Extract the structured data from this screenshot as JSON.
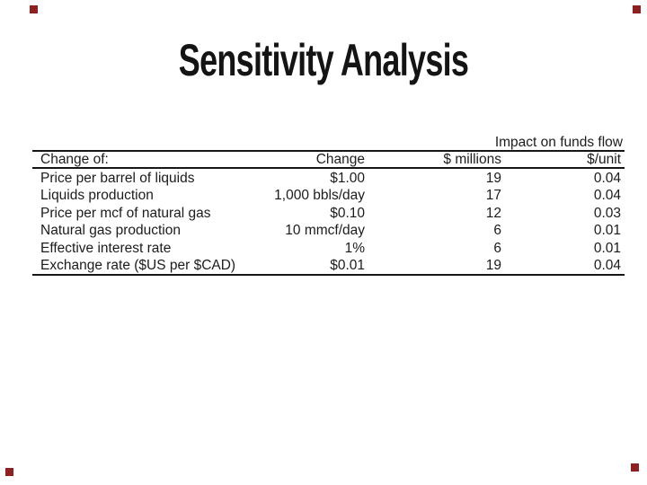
{
  "slide": {
    "title": "Sensitivity Analysis",
    "corner_mark_color": "#8e2020"
  },
  "table": {
    "banner": "Impact on funds flow",
    "columns": [
      "Change of:",
      "Change",
      "$ millions",
      "$/unit"
    ],
    "rows": [
      [
        "Price per barrel of liquids",
        "$1.00",
        "19",
        "0.04"
      ],
      [
        "Liquids production",
        "1,000 bbls/day",
        "17",
        "0.04"
      ],
      [
        "Price per mcf of natural gas",
        "$0.10",
        "12",
        "0.03"
      ],
      [
        "Natural gas production",
        "10 mmcf/day",
        "6",
        "0.01"
      ],
      [
        "Effective interest rate",
        "1%",
        "6",
        "0.01"
      ],
      [
        "Exchange rate ($US per $CAD)",
        "$0.01",
        "19",
        "0.04"
      ]
    ]
  }
}
